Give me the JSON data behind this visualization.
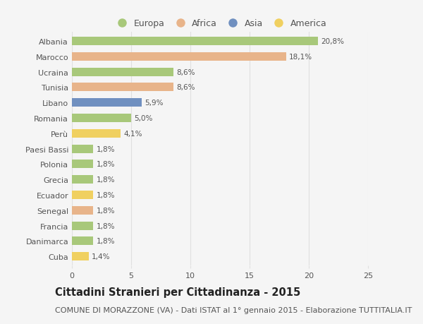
{
  "categories": [
    "Albania",
    "Marocco",
    "Ucraina",
    "Tunisia",
    "Libano",
    "Romania",
    "Perù",
    "Paesi Bassi",
    "Polonia",
    "Grecia",
    "Ecuador",
    "Senegal",
    "Francia",
    "Danimarca",
    "Cuba"
  ],
  "values": [
    20.8,
    18.1,
    8.6,
    8.6,
    5.9,
    5.0,
    4.1,
    1.8,
    1.8,
    1.8,
    1.8,
    1.8,
    1.8,
    1.8,
    1.4
  ],
  "labels": [
    "20,8%",
    "18,1%",
    "8,6%",
    "8,6%",
    "5,9%",
    "5,0%",
    "4,1%",
    "1,8%",
    "1,8%",
    "1,8%",
    "1,8%",
    "1,8%",
    "1,8%",
    "1,8%",
    "1,4%"
  ],
  "continents": [
    "Europa",
    "Africa",
    "Europa",
    "Africa",
    "Asia",
    "Europa",
    "America",
    "Europa",
    "Europa",
    "Europa",
    "America",
    "Africa",
    "Europa",
    "Europa",
    "America"
  ],
  "colors": {
    "Europa": "#a8c87a",
    "Africa": "#e8b48a",
    "Asia": "#7090c0",
    "America": "#f0d060"
  },
  "legend_order": [
    "Europa",
    "Africa",
    "Asia",
    "America"
  ],
  "legend_colors": [
    "#a8c87a",
    "#e8b48a",
    "#7090c0",
    "#f0d060"
  ],
  "xlim": [
    0,
    25
  ],
  "xticks": [
    0,
    5,
    10,
    15,
    20,
    25
  ],
  "title": "Cittadini Stranieri per Cittadinanza - 2015",
  "subtitle": "COMUNE DI MORAZZONE (VA) - Dati ISTAT al 1° gennaio 2015 - Elaborazione TUTTITALIA.IT",
  "background_color": "#f5f5f5",
  "plot_background": "#f5f5f5",
  "grid_color": "#e0e0e0",
  "bar_height": 0.55,
  "text_color": "#555555",
  "title_fontsize": 10.5,
  "subtitle_fontsize": 8,
  "label_fontsize": 7.5,
  "tick_fontsize": 8,
  "legend_fontsize": 9
}
